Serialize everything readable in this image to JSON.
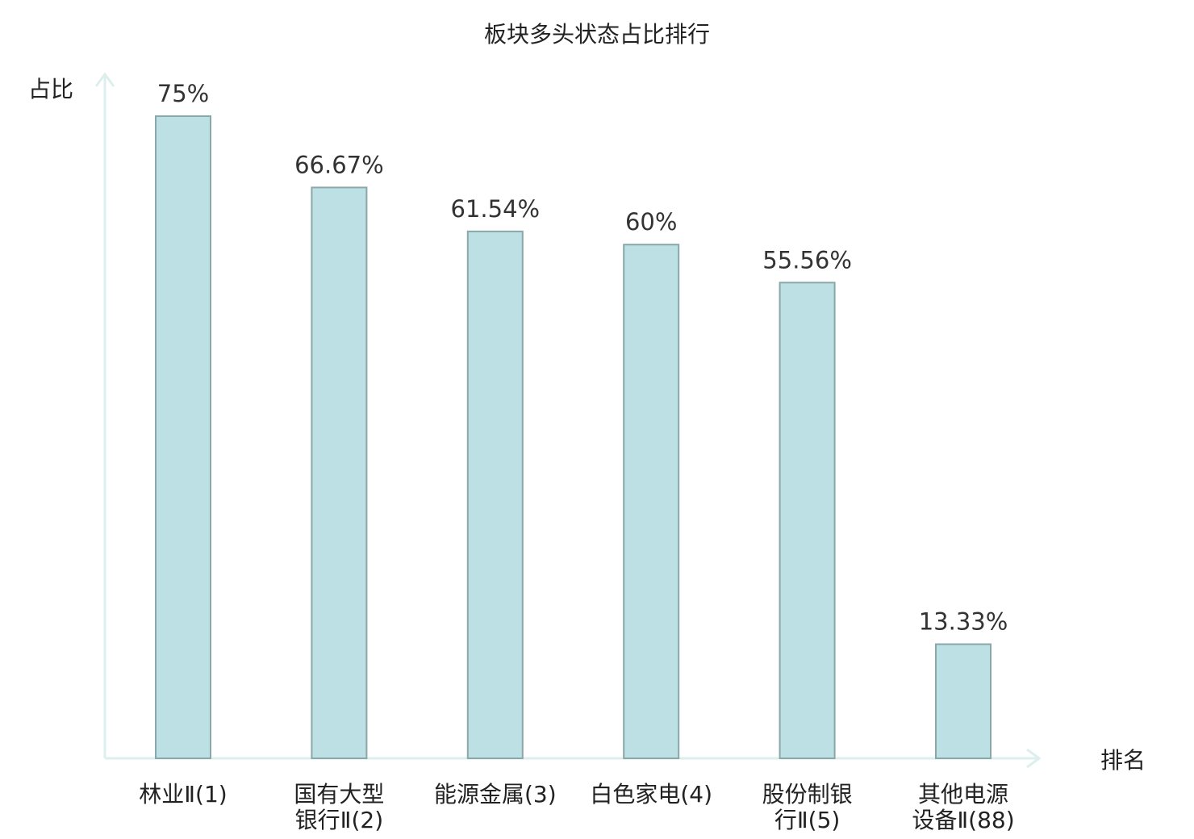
{
  "chart_data": {
    "type": "bar",
    "title": "板块多头状态占比排行",
    "ylabel": "占比",
    "xlabel": "排名",
    "ylim": [
      0,
      100
    ],
    "grid": false,
    "categories": [
      {
        "lines": [
          "林业Ⅱ(1)"
        ],
        "highlight": false
      },
      {
        "lines": [
          "国有大型",
          "银行Ⅱ(2)"
        ],
        "highlight": false
      },
      {
        "lines": [
          "能源金属(3)"
        ],
        "highlight": false
      },
      {
        "lines": [
          "白色家电(4)"
        ],
        "highlight": false
      },
      {
        "lines": [
          "股份制银",
          "行Ⅱ(5)"
        ],
        "highlight": false
      },
      {
        "lines": [
          "其他电源",
          "设备Ⅱ(88)"
        ],
        "highlight": true
      }
    ],
    "values": [
      75,
      66.67,
      61.54,
      60,
      55.56,
      13.33
    ],
    "value_labels": [
      "75%",
      "66.67%",
      "61.54%",
      "60%",
      "55.56%",
      "13.33%"
    ],
    "colors": {
      "bar_fill": "#bce0e3",
      "bar_stroke": "#8aa7a9",
      "axis": "#dcefed",
      "highlight_text": "#e01818",
      "text": "#222222"
    }
  }
}
